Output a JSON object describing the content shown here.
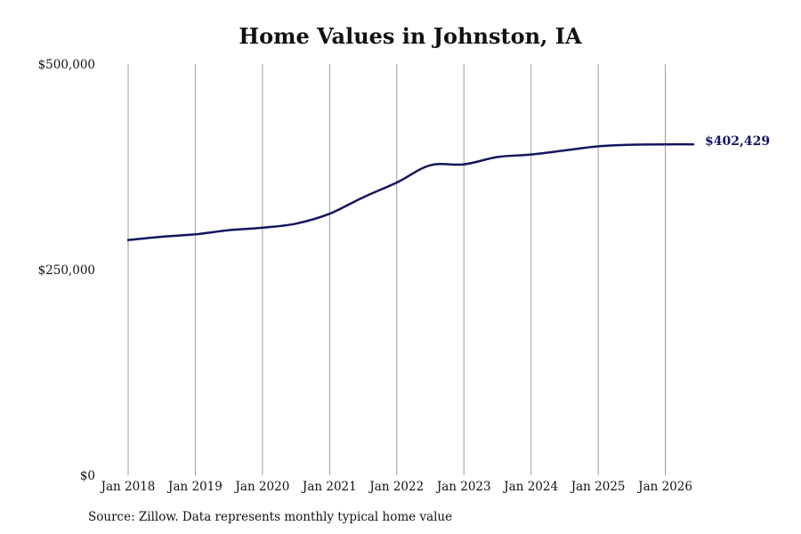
{
  "chart_data": {
    "type": "line",
    "title": "Home Values in Johnston, IA",
    "subtitle": "",
    "xlabel": "",
    "ylabel": "",
    "x_ticks": [
      "Jan 2018",
      "Jan 2019",
      "Jan 2020",
      "Jan 2021",
      "Jan 2022",
      "Jan 2023",
      "Jan 2024",
      "Jan 2025",
      "Jan 2026"
    ],
    "y_ticks": [
      "$0",
      "$250,000",
      "$500,000"
    ],
    "ylim": [
      0,
      500000
    ],
    "xlim": [
      "2018-01",
      "2026-06"
    ],
    "grid": "vertical",
    "series": [
      {
        "color": "#14145f",
        "points": [
          [
            "2018-01",
            286000
          ],
          [
            "2018-07",
            290000
          ],
          [
            "2019-01",
            293000
          ],
          [
            "2019-07",
            298000
          ],
          [
            "2020-01",
            301000
          ],
          [
            "2020-07",
            306000
          ],
          [
            "2021-01",
            318000
          ],
          [
            "2021-07",
            338000
          ],
          [
            "2022-01",
            356000
          ],
          [
            "2022-07",
            377000
          ],
          [
            "2023-01",
            378000
          ],
          [
            "2023-07",
            387000
          ],
          [
            "2024-01",
            390000
          ],
          [
            "2024-07",
            395000
          ],
          [
            "2025-01",
            400000
          ],
          [
            "2025-07",
            402000
          ],
          [
            "2026-01",
            402400
          ],
          [
            "2026-06",
            402429
          ]
        ],
        "end_label": "$402,429"
      }
    ]
  },
  "footer": {
    "source": "Source: Zillow. Data represents monthly typical home value"
  }
}
